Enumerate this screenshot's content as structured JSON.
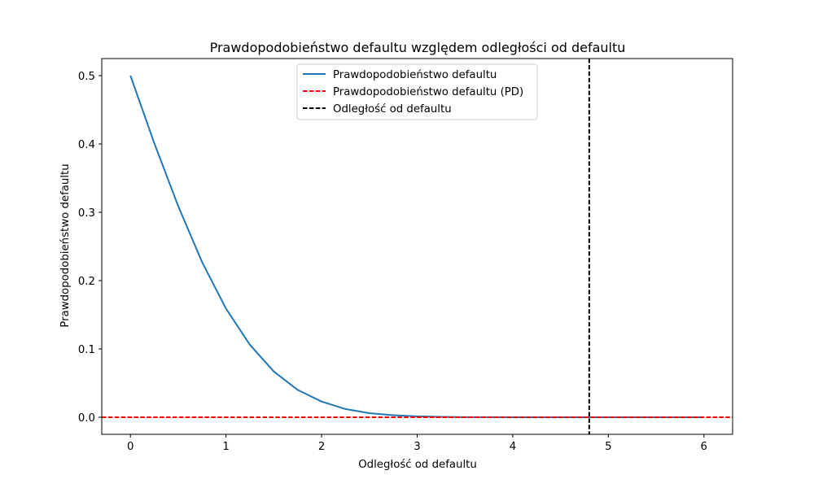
{
  "chart_data": {
    "type": "line",
    "title": "Prawdopodobieństwo defaultu względem odległości od defaultu",
    "xlabel": "Odległość od defaultu",
    "ylabel": "Prawdopodobieństwo defaultu",
    "xlim": [
      -0.3,
      6.3
    ],
    "ylim": [
      -0.025,
      0.525
    ],
    "xticks": [
      0,
      1,
      2,
      3,
      4,
      5,
      6
    ],
    "xtick_labels": [
      "0",
      "1",
      "2",
      "3",
      "4",
      "5",
      "6"
    ],
    "yticks": [
      0.0,
      0.1,
      0.2,
      0.3,
      0.4,
      0.5
    ],
    "ytick_labels": [
      "0.0",
      "0.1",
      "0.2",
      "0.3",
      "0.4",
      "0.5"
    ],
    "grid": false,
    "legend_position": "top-center",
    "series": [
      {
        "name": "Prawdopodobieństwo defaultu",
        "style": "solid",
        "color": "#1f77b4",
        "x": [
          0,
          0.25,
          0.5,
          0.75,
          1.0,
          1.25,
          1.5,
          1.75,
          2.0,
          2.25,
          2.5,
          2.75,
          3.0,
          3.25,
          3.5,
          3.75,
          4.0,
          4.5,
          5.0,
          5.5,
          6.0
        ],
        "y": [
          0.5,
          0.401,
          0.309,
          0.227,
          0.159,
          0.106,
          0.067,
          0.04,
          0.023,
          0.012,
          0.006,
          0.003,
          0.0013,
          0.0006,
          0.0002,
          0.0001,
          3e-05,
          0.0,
          0.0,
          0.0,
          0.0
        ]
      },
      {
        "name": "Prawdopodobieństwo defaultu (PD)",
        "style": "dashed",
        "orientation": "horizontal",
        "color": "#ff0000",
        "value": 0.0
      },
      {
        "name": "Odległość od defaultu",
        "style": "dashed",
        "orientation": "vertical",
        "color": "#000000",
        "value": 4.8
      }
    ]
  }
}
